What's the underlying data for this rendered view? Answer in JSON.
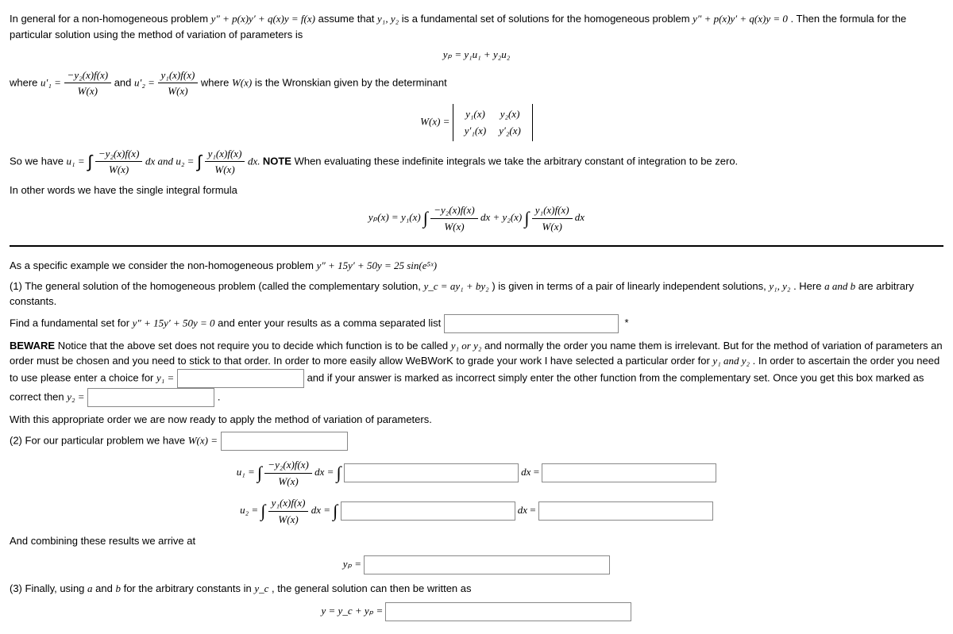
{
  "para": {
    "intro1": "In general for a non-homogeneous problem ",
    "intro1b": " assume that ",
    "intro1c": " is a fundamental set of solutions for the homogeneous problem ",
    "intro1d": ". Then the formula for the particular solution using the method of variation of parameters is",
    "where": "where ",
    "and": " and ",
    "wronskian_txt": " where ",
    "wronskian_txt2": " is the Wronskian given by the determinant",
    "sowehave": "So we have ",
    "note_label": "NOTE",
    "note_txt": " When evaluating these indefinite integrals we take the arbitrary constant of integration to be zero.",
    "other_words": "In other words we have the single integral formula",
    "specific": "As a specific example we consider the non-homogeneous problem ",
    "item1a": "(1) The general solution of the homogeneous problem (called the complementary solution, ",
    "item1b": " ) is given in terms of a pair of linearly independent solutions, ",
    "item1c": ". Here ",
    "item1d": " are arbitrary constants.",
    "find_fund": "Find a fundamental set for ",
    "find_fund2": " and enter your results as a comma separated list ",
    "beware_label": "BEWARE",
    "beware_txt": " Notice that the above set does not require you to decide which function is to be called ",
    "beware_txt2": " and normally the order you name them is irrelevant. But for the method of variation of parameters an order must be chosen and you need to stick to that order. In order to more easily allow WeBWorK to grade your work I have selected a particular order for ",
    "beware_txt3": ". In order to ascertain the order you need to use please enter a choice for ",
    "beware_txt4": " and if your answer is marked as incorrect simply enter the other function from the complementary set. Once you get this box marked as correct then ",
    "with_order": "With this appropriate order we are now ready to apply the method of variation of parameters.",
    "item2": "(2) For our particular problem we have ",
    "combining": "And combining these results we arrive at",
    "item3": "(3) Finally, using ",
    "item3b": " for the arbitrary constants in ",
    "item3c": ", the general solution can then be written as"
  },
  "math": {
    "ode_nonhom": "y″ + p(x)y′ + q(x)y = f(x)",
    "y1y2": "y₁, y₂",
    "ode_hom": "y″ + p(x)y′ + q(x)y = 0",
    "yp_eq": "yₚ = y₁u₁ + y₂u₂",
    "u1p": "u′₁ =",
    "u2p": "u′₂ =",
    "neg_y2fx": "−y₂(x)f(x)",
    "y1fx": "y₁(x)f(x)",
    "Wx": "W(x)",
    "Wx_eq": "W(x) =",
    "det_r1c1": "y₁(x)",
    "det_r1c2": "y₂(x)",
    "det_r2c1": "y′₁(x)",
    "det_r2c2": "y′₂(x)",
    "u1_eq": "u₁ =",
    "u2_eq": "u₂ =",
    "dx": " dx",
    "dx_and": " dx and ",
    "dx_note": " dx. ",
    "yp_x": "yₚ(x) = y₁(x) ",
    "plus_y2x": " dx + y₂(x) ",
    "specific_ode": "y″ + 15y′ + 50y = 25 sin(e⁵ˣ)",
    "yc_eq": "y_c = ay₁ + by₂",
    "y1_comma_y2": "y₁, y₂",
    "a_and_b": "a and b",
    "hom_ode": "y″ + 15y′ + 50y = 0",
    "y1_or_y2": "y₁ or y₂",
    "y1_and_y2": "y₁ and y₂",
    "y1_eq": "y₁ =",
    "y2_eq": "y₂ =",
    "Wx_eq2": "W(x) =",
    "dx_eq": " dx = ",
    "yp_lbl": "yₚ =",
    "a": "a",
    "b": "b",
    "yc": "y_c",
    "y_eq": "y = y_c + yₚ ="
  },
  "inputs": {
    "fundset": {
      "placeholder": ""
    },
    "y1": {
      "placeholder": ""
    },
    "y2": {
      "placeholder": ""
    },
    "W": {
      "placeholder": ""
    },
    "u1_int": {
      "placeholder": ""
    },
    "u1_res": {
      "placeholder": ""
    },
    "u2_int": {
      "placeholder": ""
    },
    "u2_res": {
      "placeholder": ""
    },
    "yp": {
      "placeholder": ""
    },
    "gen": {
      "placeholder": ""
    }
  }
}
